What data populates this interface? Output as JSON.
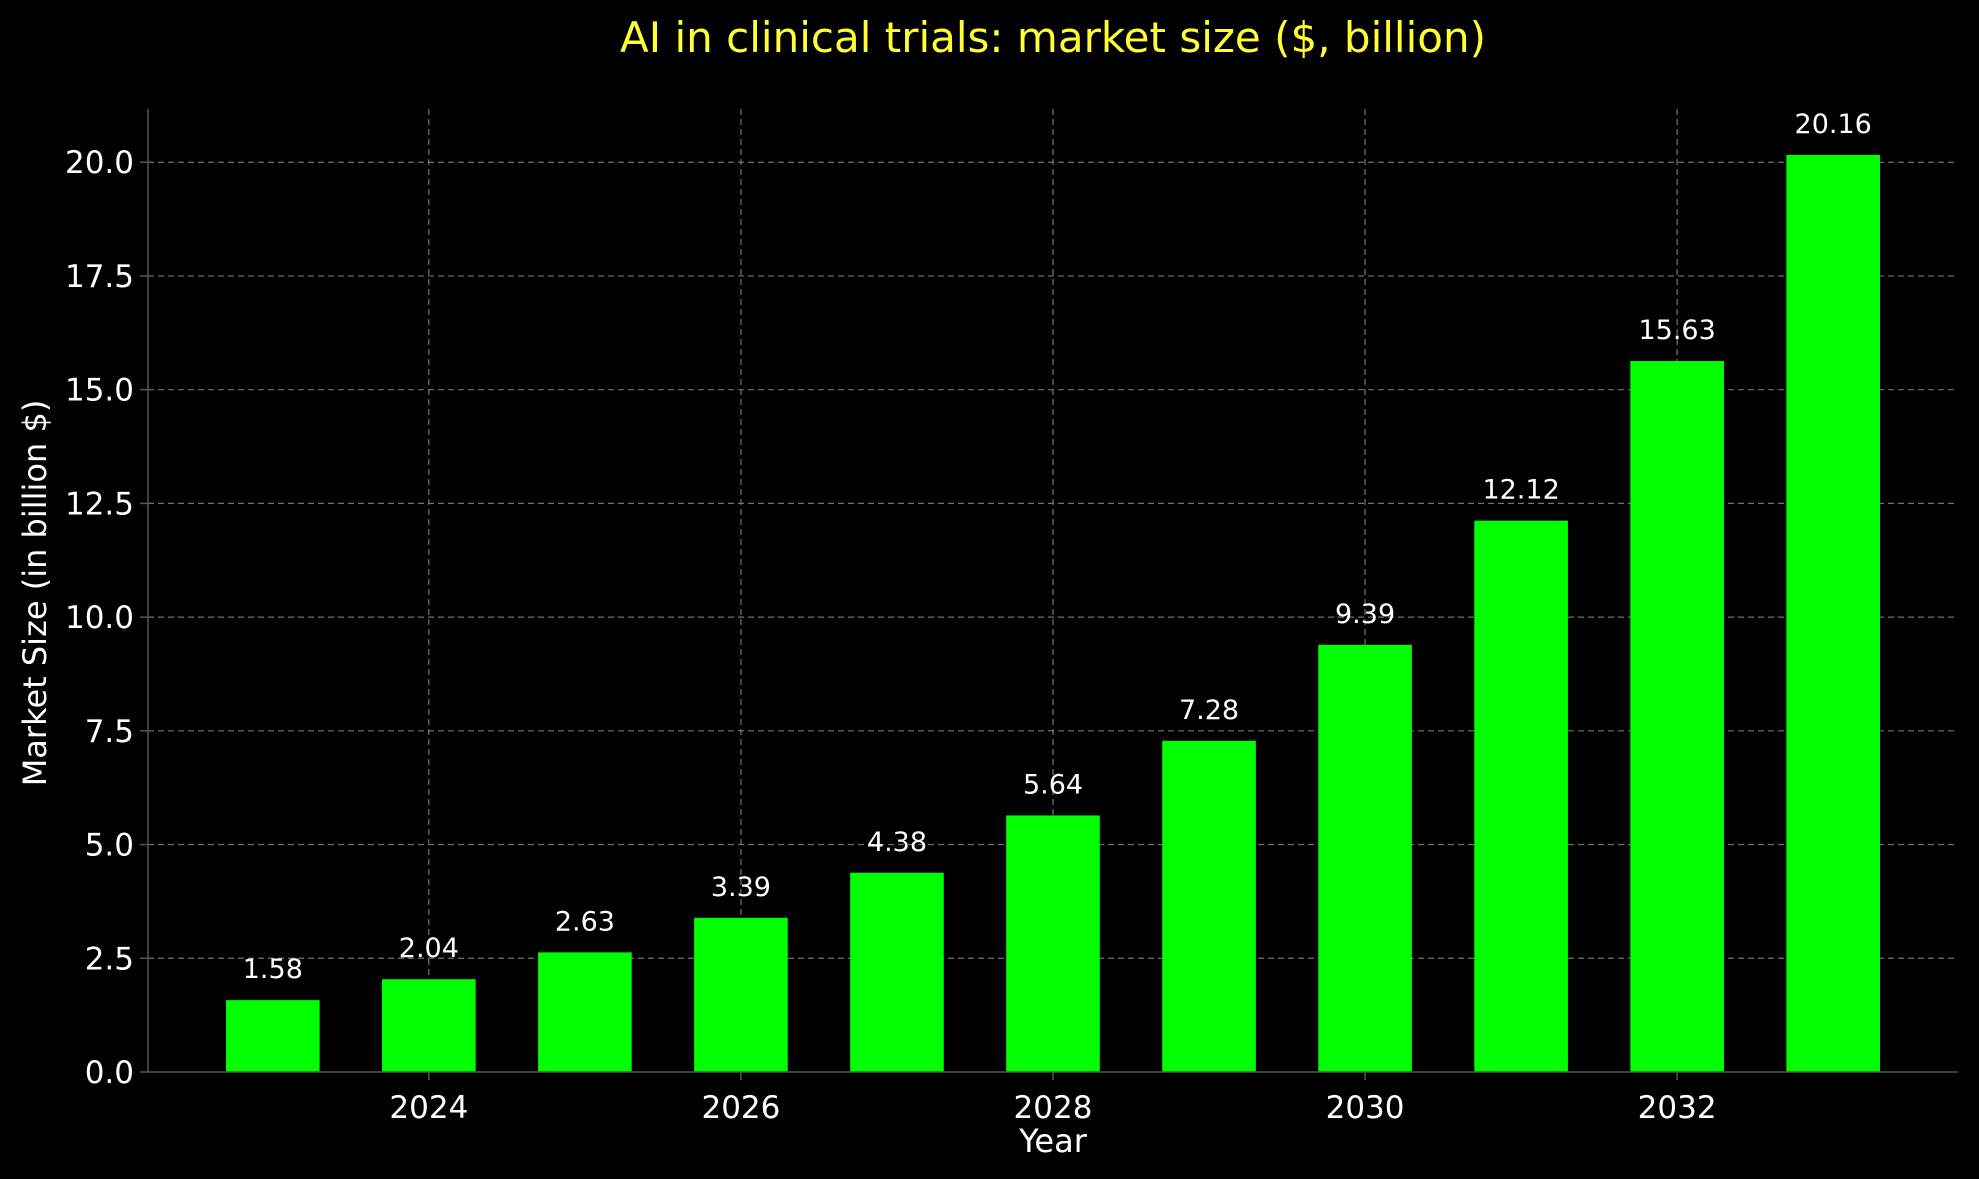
{
  "chart_data": {
    "type": "bar",
    "title": "AI in clinical trials: market size ($, billion)",
    "xlabel": "Year",
    "ylabel": "Market Size (in billion $)",
    "years": [
      2023,
      2024,
      2025,
      2026,
      2027,
      2028,
      2029,
      2030,
      2031,
      2032,
      2033
    ],
    "values": [
      1.58,
      2.04,
      2.63,
      3.39,
      4.38,
      5.64,
      7.28,
      9.39,
      12.12,
      15.63,
      20.16
    ],
    "value_labels": [
      "1.58",
      "2.04",
      "2.63",
      "3.39",
      "4.38",
      "5.64",
      "7.28",
      "9.39",
      "12.12",
      "15.63",
      "20.16"
    ],
    "x_ticks": [
      2024,
      2026,
      2028,
      2030,
      2032
    ],
    "x_tick_labels": [
      "2024",
      "2026",
      "2028",
      "2030",
      "2032"
    ],
    "y_ticks": [
      0,
      2.5,
      5,
      7.5,
      10,
      12.5,
      15,
      17.5,
      20
    ],
    "y_tick_labels": [
      "0.0",
      "2.5",
      "5.0",
      "7.5",
      "10.0",
      "12.5",
      "15.0",
      "17.5",
      "20.0"
    ],
    "xlim": [
      2022.2,
      2033.8
    ],
    "ylim": [
      0,
      21.17
    ],
    "grid": true,
    "legend": "none",
    "colors": {
      "background": "#000000",
      "bar": "#00ff00",
      "title": "#ffff33",
      "text": "#ffffff",
      "grid": "#808080",
      "axis": "#555555"
    }
  }
}
